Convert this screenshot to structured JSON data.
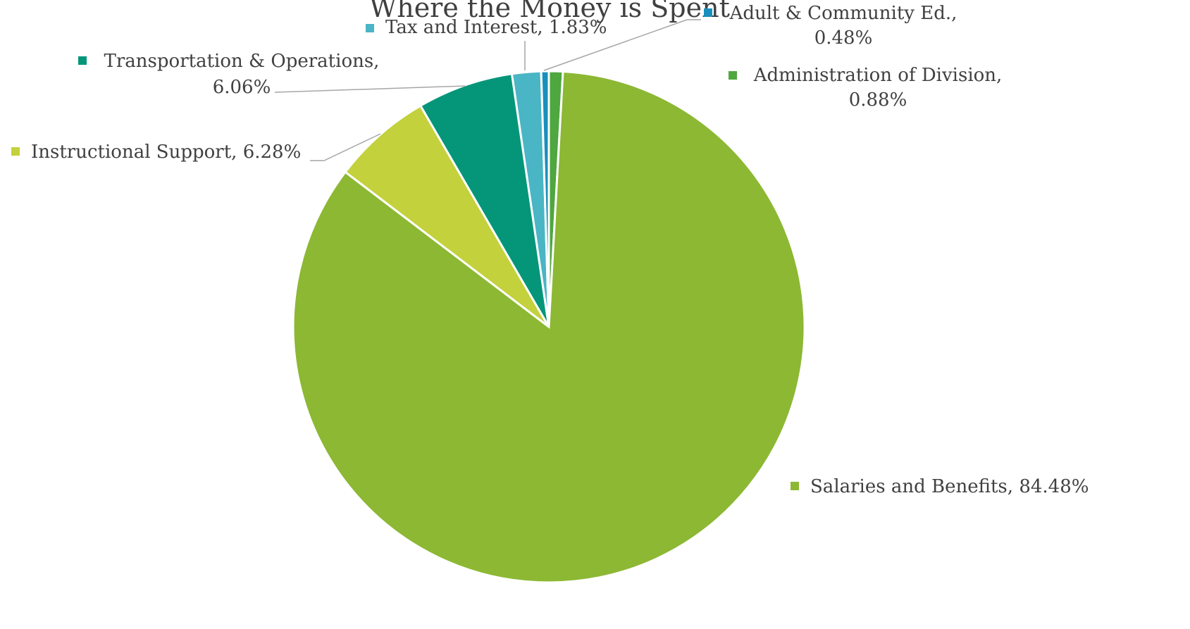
{
  "chart_data": {
    "type": "pie",
    "title": "Where the Money is Spent",
    "categories": [
      "Administration of Division,",
      "Salaries and Benefits,",
      "Instructional Support,",
      "Transportation & Operations,",
      "Tax and Interest,",
      "Adult & Community Ed.,"
    ],
    "values": [
      0.88,
      84.48,
      6.28,
      6.06,
      1.83,
      0.48
    ],
    "value_labels": [
      "0.88%",
      "84.48%",
      "6.28%",
      "6.06%",
      "1.83%",
      "0.48%"
    ],
    "colors": [
      "#4ea73f",
      "#8cb833",
      "#c3d13c",
      "#05967a",
      "#4ab5c4",
      "#1a8fbd"
    ]
  }
}
